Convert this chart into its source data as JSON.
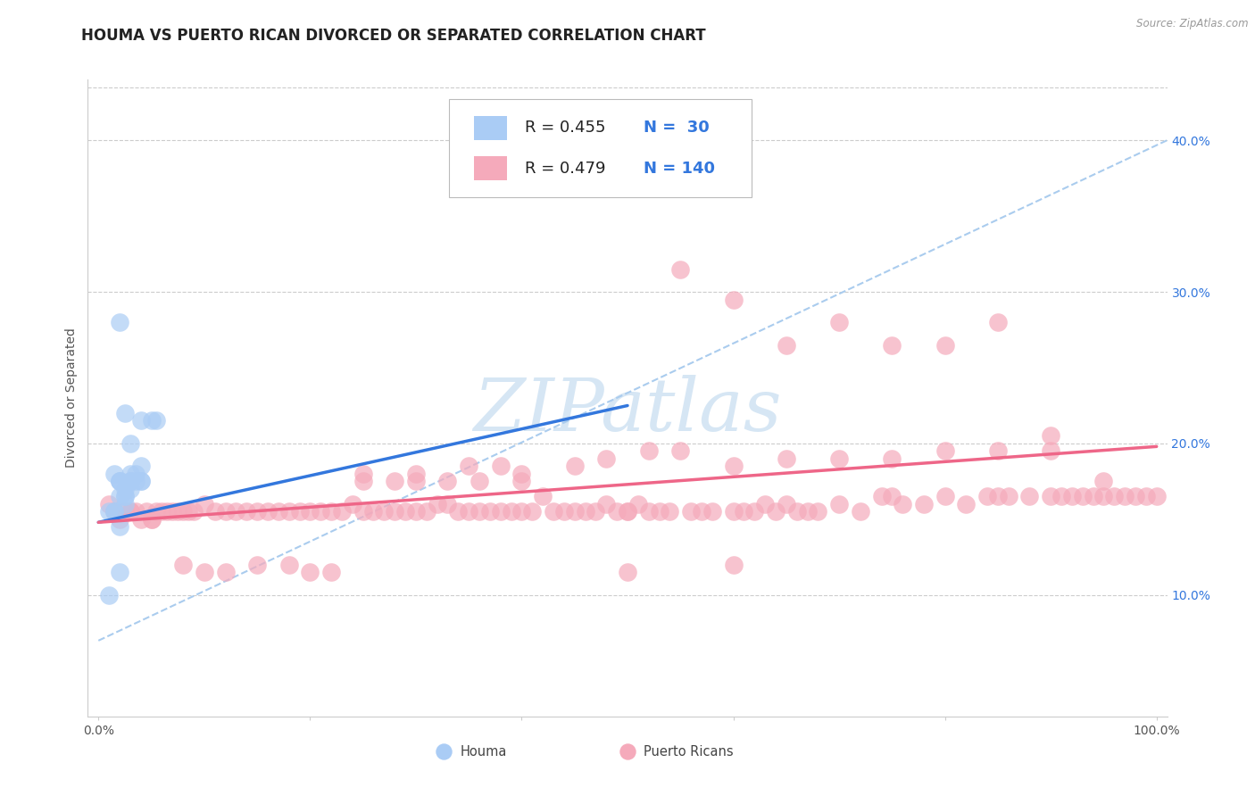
{
  "title": "HOUMA VS PUERTO RICAN DIVORCED OR SEPARATED CORRELATION CHART",
  "source": "Source: ZipAtlas.com",
  "ylabel": "Divorced or Separated",
  "xlim": [
    -0.01,
    1.01
  ],
  "ylim": [
    0.02,
    0.44
  ],
  "xticks": [
    0.0,
    0.2,
    0.4,
    0.6,
    0.8,
    1.0
  ],
  "xtick_labels": [
    "0.0%",
    "",
    "",
    "",
    "",
    "100.0%"
  ],
  "yticks_right": [
    0.1,
    0.2,
    0.3,
    0.4
  ],
  "ytick_labels_right": [
    "10.0%",
    "20.0%",
    "30.0%",
    "40.0%"
  ],
  "legend_R_houma": "R = 0.455",
  "legend_N_houma": "N =  30",
  "legend_R_pr": "R = 0.479",
  "legend_N_pr": "N = 140",
  "houma_color": "#aaccf5",
  "pr_color": "#f5aabb",
  "houma_line_color": "#3377dd",
  "pr_line_color": "#ee6688",
  "dashed_line_color": "#aaccee",
  "background_color": "#ffffff",
  "grid_color": "#cccccc",
  "houma_x": [
    0.015,
    0.02,
    0.025,
    0.01,
    0.03,
    0.02,
    0.025,
    0.03,
    0.035,
    0.04,
    0.015,
    0.02,
    0.025,
    0.03,
    0.02,
    0.025,
    0.04,
    0.015,
    0.03,
    0.025,
    0.02,
    0.03,
    0.055,
    0.04,
    0.05,
    0.035,
    0.01,
    0.02,
    0.04,
    0.02
  ],
  "houma_y": [
    0.155,
    0.165,
    0.16,
    0.155,
    0.17,
    0.145,
    0.17,
    0.175,
    0.18,
    0.185,
    0.155,
    0.175,
    0.165,
    0.18,
    0.175,
    0.165,
    0.175,
    0.18,
    0.175,
    0.22,
    0.175,
    0.2,
    0.215,
    0.215,
    0.215,
    0.175,
    0.1,
    0.115,
    0.175,
    0.28
  ],
  "pr_x": [
    0.01,
    0.015,
    0.02,
    0.025,
    0.03,
    0.035,
    0.04,
    0.045,
    0.05,
    0.055,
    0.06,
    0.065,
    0.07,
    0.075,
    0.08,
    0.085,
    0.09,
    0.1,
    0.11,
    0.12,
    0.13,
    0.14,
    0.15,
    0.16,
    0.17,
    0.18,
    0.19,
    0.2,
    0.21,
    0.22,
    0.23,
    0.24,
    0.25,
    0.26,
    0.27,
    0.28,
    0.29,
    0.3,
    0.31,
    0.32,
    0.33,
    0.34,
    0.35,
    0.36,
    0.37,
    0.38,
    0.39,
    0.4,
    0.41,
    0.42,
    0.43,
    0.44,
    0.45,
    0.46,
    0.47,
    0.48,
    0.49,
    0.5,
    0.51,
    0.52,
    0.53,
    0.54,
    0.56,
    0.57,
    0.58,
    0.6,
    0.61,
    0.62,
    0.63,
    0.64,
    0.65,
    0.66,
    0.67,
    0.68,
    0.7,
    0.72,
    0.74,
    0.75,
    0.76,
    0.78,
    0.8,
    0.82,
    0.84,
    0.85,
    0.86,
    0.88,
    0.9,
    0.91,
    0.92,
    0.93,
    0.94,
    0.95,
    0.96,
    0.97,
    0.98,
    0.99,
    1.0,
    0.35,
    0.5,
    0.38,
    0.45,
    0.52,
    0.6,
    0.55,
    0.48,
    0.3,
    0.25,
    0.4,
    0.65,
    0.7,
    0.75,
    0.8,
    0.85,
    0.9,
    0.55,
    0.6,
    0.65,
    0.7,
    0.75,
    0.8,
    0.85,
    0.9,
    0.95,
    0.03,
    0.05,
    0.08,
    0.1,
    0.12,
    0.15,
    0.18,
    0.2,
    0.22,
    0.25,
    0.28,
    0.3,
    0.33,
    0.36,
    0.4,
    0.5,
    0.6
  ],
  "pr_y": [
    0.16,
    0.155,
    0.15,
    0.155,
    0.155,
    0.155,
    0.15,
    0.155,
    0.15,
    0.155,
    0.155,
    0.155,
    0.155,
    0.155,
    0.155,
    0.155,
    0.155,
    0.16,
    0.155,
    0.155,
    0.155,
    0.155,
    0.155,
    0.155,
    0.155,
    0.155,
    0.155,
    0.155,
    0.155,
    0.155,
    0.155,
    0.16,
    0.155,
    0.155,
    0.155,
    0.155,
    0.155,
    0.155,
    0.155,
    0.16,
    0.16,
    0.155,
    0.155,
    0.155,
    0.155,
    0.155,
    0.155,
    0.155,
    0.155,
    0.165,
    0.155,
    0.155,
    0.155,
    0.155,
    0.155,
    0.16,
    0.155,
    0.155,
    0.16,
    0.155,
    0.155,
    0.155,
    0.155,
    0.155,
    0.155,
    0.155,
    0.155,
    0.155,
    0.16,
    0.155,
    0.16,
    0.155,
    0.155,
    0.155,
    0.16,
    0.155,
    0.165,
    0.165,
    0.16,
    0.16,
    0.165,
    0.16,
    0.165,
    0.165,
    0.165,
    0.165,
    0.165,
    0.165,
    0.165,
    0.165,
    0.165,
    0.165,
    0.165,
    0.165,
    0.165,
    0.165,
    0.165,
    0.185,
    0.155,
    0.185,
    0.185,
    0.195,
    0.185,
    0.195,
    0.19,
    0.18,
    0.18,
    0.18,
    0.19,
    0.19,
    0.19,
    0.195,
    0.195,
    0.195,
    0.315,
    0.295,
    0.265,
    0.28,
    0.265,
    0.265,
    0.28,
    0.205,
    0.175,
    0.155,
    0.15,
    0.12,
    0.115,
    0.115,
    0.12,
    0.12,
    0.115,
    0.115,
    0.175,
    0.175,
    0.175,
    0.175,
    0.175,
    0.175,
    0.115,
    0.12
  ],
  "houma_trend_x": [
    0.0,
    0.5
  ],
  "houma_trend_y": [
    0.148,
    0.225
  ],
  "pr_trend_x": [
    0.0,
    1.0
  ],
  "pr_trend_y": [
    0.148,
    0.198
  ],
  "dashed_trend_x": [
    0.0,
    1.01
  ],
  "dashed_trend_y": [
    0.07,
    0.4
  ],
  "title_fontsize": 12,
  "axis_label_fontsize": 10,
  "tick_fontsize": 10,
  "legend_fontsize": 13,
  "watermark_text": "ZIPatlas",
  "watermark_color": "#c5dcf0",
  "legend_label_houma": "Houma",
  "legend_label_pr": "Puerto Ricans"
}
